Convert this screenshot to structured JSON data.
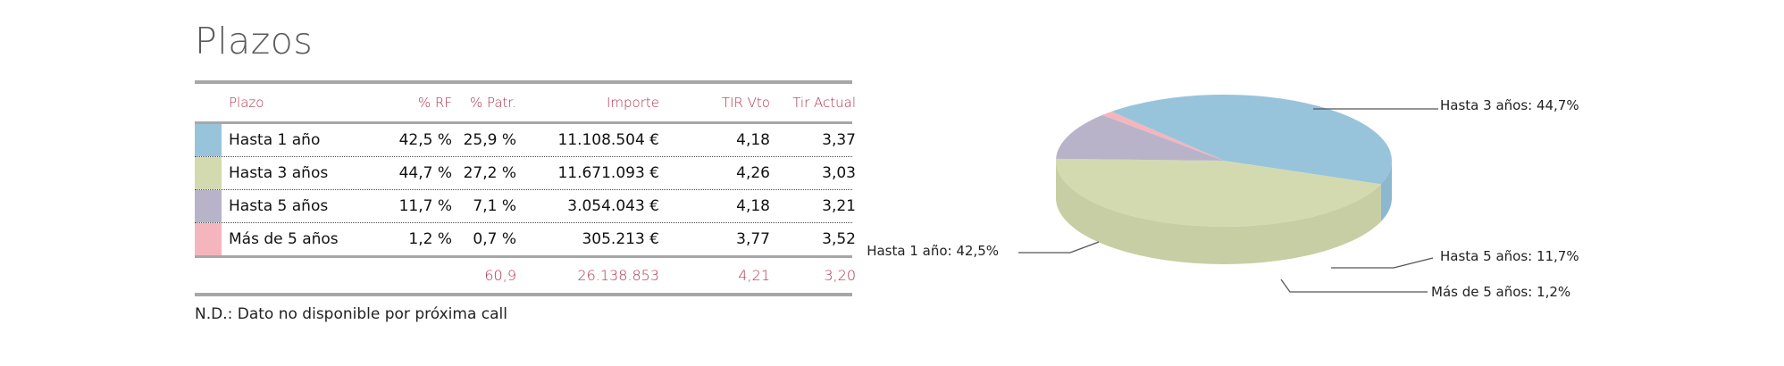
{
  "page": {
    "title": "Plazos",
    "note": "N.D.: Dato no disponible por próxima call"
  },
  "table": {
    "headers": [
      "Plazo",
      "% RF",
      "% Patr.",
      "Importe",
      "TIR Vto",
      "Tir Actual"
    ],
    "rows": [
      {
        "plazo": "Hasta 1 año",
        "rf": "42,5 %",
        "patr": "25,9 %",
        "importe": "11.108.504 €",
        "tir_vto": "4,18",
        "tir_actual": "3,37",
        "color": "#98c4db"
      },
      {
        "plazo": "Hasta 3 años",
        "rf": "44,7 %",
        "patr": "27,2 %",
        "importe": "11.671.093 €",
        "tir_vto": "4,26",
        "tir_actual": "3,03",
        "color": "#d3dab0"
      },
      {
        "plazo": "Hasta 5 años",
        "rf": "11,7 %",
        "patr": "7,1 %",
        "importe": "3.054.043 €",
        "tir_vto": "4,18",
        "tir_actual": "3,21",
        "color": "#b9b3ca"
      },
      {
        "plazo": "Más de 5 años",
        "rf": "1,2 %",
        "patr": "0,7 %",
        "importe": "305.213 €",
        "tir_vto": "3,77",
        "tir_actual": "3,52",
        "color": "#f5b5bd"
      }
    ],
    "totals": {
      "patr": "60,9",
      "importe": "26.138.853",
      "tir_vto": "4,21",
      "tir_actual": "3,20"
    }
  },
  "chart_data": {
    "type": "pie",
    "title": "",
    "categories": [
      "Hasta 1 año",
      "Hasta 3 años",
      "Hasta 5 años",
      "Más de 5 años"
    ],
    "values": [
      42.5,
      44.7,
      11.7,
      1.2
    ],
    "labels": [
      "Hasta 1 año: 42,5%",
      "Hasta 3 años: 44,7%",
      "Hasta 5 años: 11,7%",
      "Más de 5 años: 1,2%"
    ],
    "colors": [
      "#98c4db",
      "#d3dab0",
      "#b9b3ca",
      "#f5b5bd"
    ],
    "side_colors": [
      "#8cb8cf",
      "#c7cea4",
      "#aca6bf",
      "#e9a9b1"
    ],
    "legend": "none",
    "style": "3d"
  }
}
